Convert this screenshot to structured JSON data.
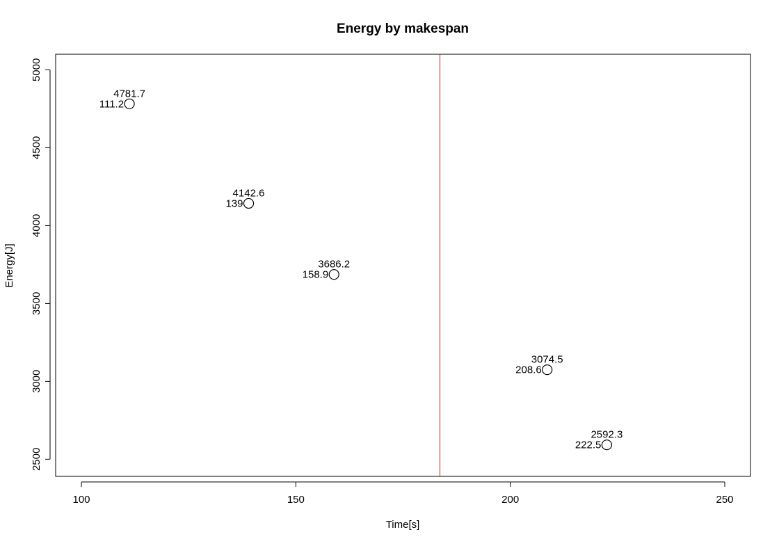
{
  "chart_data": {
    "type": "scatter",
    "title": "Energy by makespan",
    "xlabel": "Time[s]",
    "ylabel": "Energy[J]",
    "xlim": [
      94,
      256
    ],
    "ylim": [
      2390,
      5100
    ],
    "x_ticks": [
      100,
      150,
      200,
      250
    ],
    "y_ticks": [
      2500,
      3000,
      3500,
      4000,
      4500,
      5000
    ],
    "grid": false,
    "points": [
      {
        "x": 111.2,
        "y": 4781.7,
        "x_label": "111.2",
        "y_label": "4781.7"
      },
      {
        "x": 139,
        "y": 4142.6,
        "x_label": "139",
        "y_label": "4142.6"
      },
      {
        "x": 158.9,
        "y": 3686.2,
        "x_label": "158.9",
        "y_label": "3686.2"
      },
      {
        "x": 208.6,
        "y": 3074.5,
        "x_label": "208.6",
        "y_label": "3074.5"
      },
      {
        "x": 222.5,
        "y": 2592.3,
        "x_label": "222.5",
        "y_label": "2592.3"
      }
    ],
    "vline": {
      "x": 183.6,
      "color": "#b22222"
    },
    "point_color": "#000000"
  }
}
